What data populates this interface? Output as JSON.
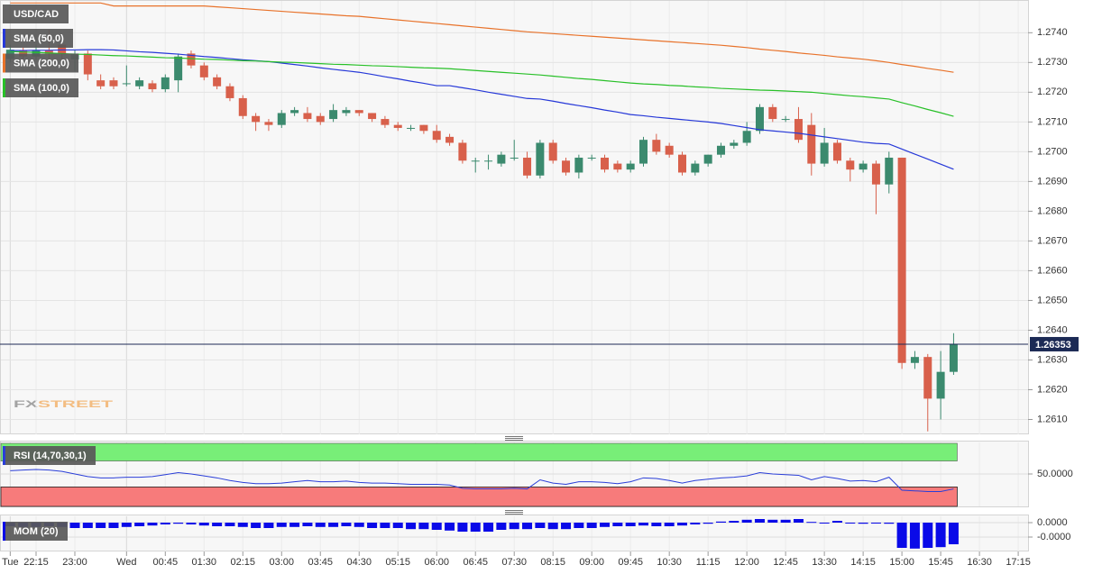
{
  "chart_data": [
    {
      "type": "candlestick",
      "title": "USD/CAD",
      "watermark": [
        "FX",
        "STREET"
      ],
      "categories": [
        "Tue",
        null,
        "22:15",
        null,
        null,
        "23:00",
        null,
        null,
        null,
        "Wed",
        null,
        null,
        "00:45",
        null,
        null,
        "01:30",
        null,
        null,
        "02:15",
        null,
        null,
        "03:00",
        null,
        null,
        "03:45",
        null,
        null,
        "04:30",
        null,
        null,
        "05:15",
        null,
        null,
        "06:00",
        null,
        null,
        "06:45",
        null,
        null,
        "07:30",
        null,
        null,
        "08:15",
        null,
        null,
        "09:00",
        null,
        null,
        "09:45",
        null,
        null,
        "10:30",
        null,
        null,
        "11:15",
        null,
        null,
        "12:00",
        null,
        null,
        "12:45",
        null,
        null,
        "13:30",
        null,
        null,
        "14:15",
        null,
        null,
        "15:00",
        null,
        null,
        "15:45",
        null,
        null,
        "16:30",
        null,
        null,
        "17:15"
      ],
      "open": [
        1.27312,
        1.2734,
        1.2732,
        1.2734,
        1.2736,
        1.2731,
        1.2733,
        1.2724,
        1.2724,
        1.2723,
        1.2722,
        1.2723,
        1.2721,
        1.2724,
        1.2733,
        1.2729,
        1.2725,
        1.2722,
        1.2718,
        1.2712,
        1.271,
        1.2709,
        1.2713,
        1.2713,
        1.2712,
        1.2711,
        1.2713,
        1.2714,
        1.2713,
        1.2711,
        1.2709,
        1.2708,
        1.2709,
        1.2707,
        1.2705,
        1.2703,
        1.2697,
        1.2697,
        1.2696,
        1.2698,
        1.2698,
        1.2692,
        1.2703,
        1.2697,
        1.2693,
        1.2698,
        1.2698,
        1.2696,
        1.2694,
        1.2696,
        1.2704,
        1.2702,
        1.2699,
        1.2693,
        1.2696,
        1.2699,
        1.2702,
        1.2703,
        1.2707,
        1.2715,
        1.2711,
        1.2711,
        1.2709,
        1.2696,
        1.2703,
        1.2697,
        1.2694,
        1.2696,
        1.2689,
        1.2698,
        1.2629,
        1.2631,
        1.2617,
        1.2626,
        null,
        null,
        null,
        null,
        null
      ],
      "high": [
        1.2736,
        1.2735,
        1.2736,
        1.2741,
        1.2737,
        1.2734,
        1.2734,
        1.2726,
        1.2725,
        1.2729,
        1.2725,
        1.2724,
        1.2726,
        1.2733,
        1.2734,
        1.273,
        1.2726,
        1.2723,
        1.2719,
        1.2713,
        1.2711,
        1.2714,
        1.2715,
        1.2715,
        1.2713,
        1.2716,
        1.2715,
        1.2714,
        1.2713,
        1.2712,
        1.271,
        1.2709,
        1.2709,
        1.2709,
        1.2706,
        1.2704,
        1.2698,
        1.2699,
        1.27,
        1.2704,
        1.27,
        1.2704,
        1.2704,
        1.2698,
        1.2699,
        1.2699,
        1.2699,
        1.2697,
        1.2697,
        1.2705,
        1.2706,
        1.2703,
        1.27,
        1.2697,
        1.2699,
        1.2703,
        1.2704,
        1.271,
        1.2716,
        1.2716,
        1.2712,
        1.2715,
        1.2713,
        1.2708,
        1.2704,
        1.2698,
        1.2697,
        1.2697,
        1.27,
        1.2698,
        1.2633,
        1.2632,
        1.2633,
        1.2639,
        null,
        null,
        null,
        null,
        null
      ],
      "low": [
        1.273,
        1.2731,
        1.2731,
        1.2731,
        1.273,
        1.2727,
        1.2724,
        1.2721,
        1.2721,
        1.2722,
        1.2721,
        1.272,
        1.272,
        1.272,
        1.2728,
        1.2724,
        1.2721,
        1.2717,
        1.2711,
        1.2707,
        1.2707,
        1.2708,
        1.2712,
        1.271,
        1.2709,
        1.271,
        1.2712,
        1.2712,
        1.271,
        1.2708,
        1.2707,
        1.2707,
        1.2706,
        1.2703,
        1.2702,
        1.2696,
        1.2693,
        1.2694,
        1.2695,
        1.2697,
        1.2691,
        1.2691,
        1.2696,
        1.2692,
        1.2691,
        1.2697,
        1.2693,
        1.2693,
        1.2693,
        1.2695,
        1.2699,
        1.2698,
        1.2692,
        1.2692,
        1.2695,
        1.2698,
        1.2701,
        1.2702,
        1.2706,
        1.271,
        1.271,
        1.2703,
        1.2692,
        1.2695,
        1.2696,
        1.269,
        1.2693,
        1.2679,
        1.2686,
        1.2627,
        1.2627,
        1.2606,
        1.261,
        1.2625,
        null,
        null,
        null,
        null,
        null
      ],
      "close": [
        1.27343,
        1.2732,
        1.2734,
        1.2733,
        1.2733,
        1.2733,
        1.2726,
        1.2722,
        1.2722,
        1.2723,
        1.2724,
        1.2721,
        1.2725,
        1.2732,
        1.2729,
        1.2725,
        1.2722,
        1.2718,
        1.2712,
        1.271,
        1.2709,
        1.2713,
        1.2714,
        1.2711,
        1.271,
        1.2714,
        1.2714,
        1.2713,
        1.2711,
        1.2709,
        1.2708,
        1.2708,
        1.2707,
        1.2704,
        1.2703,
        1.2697,
        1.2697,
        1.2697,
        1.2699,
        1.2698,
        1.2692,
        1.2703,
        1.2697,
        1.2693,
        1.2698,
        1.2698,
        1.2694,
        1.2694,
        1.2696,
        1.2704,
        1.27,
        1.2699,
        1.2693,
        1.2696,
        1.2699,
        1.2702,
        1.2703,
        1.2707,
        1.2715,
        1.2711,
        1.2711,
        1.2704,
        1.2696,
        1.2703,
        1.2697,
        1.2694,
        1.2696,
        1.2689,
        1.2698,
        1.2629,
        1.2631,
        1.2617,
        1.2626,
        1.26353,
        null,
        null,
        null,
        null,
        null
      ],
      "up_color": "#3b8a6e",
      "down_color": "#d8604b",
      "series": [
        {
          "name": "SMA (50,0)",
          "color": "#2638d8",
          "values": [
            1.2734,
            1.2734,
            1.27341,
            1.27341,
            1.27342,
            1.27342,
            1.27343,
            1.27343,
            1.27342,
            1.27339,
            1.27336,
            1.27334,
            1.27331,
            1.27328,
            1.27324,
            1.2732,
            1.27317,
            1.27313,
            1.27309,
            1.27306,
            1.27303,
            1.27298,
            1.27293,
            1.27288,
            1.27282,
            1.27277,
            1.27272,
            1.27267,
            1.2726,
            1.27252,
            1.27245,
            1.27237,
            1.2723,
            1.27222,
            1.27222,
            1.27215,
            1.27208,
            1.272,
            1.27193,
            1.27186,
            1.27179,
            1.27177,
            1.2717,
            1.27162,
            1.27155,
            1.27148,
            1.2714,
            1.27133,
            1.27125,
            1.27121,
            1.27116,
            1.27112,
            1.27108,
            1.27104,
            1.271,
            1.27095,
            1.27088,
            1.27081,
            1.27074,
            1.2707,
            1.27066,
            1.27062,
            1.27056,
            1.2705,
            1.27044,
            1.27038,
            1.27032,
            1.27028,
            1.27026,
            1.27009,
            1.26992,
            1.26975,
            1.26958,
            1.26941,
            null,
            null,
            null,
            null,
            null
          ]
        },
        {
          "name": "SMA (200,0)",
          "color": "#e8722a",
          "values": [
            1.275,
            1.275,
            1.275,
            1.275,
            1.275,
            1.275,
            1.275,
            1.275,
            1.2749,
            1.2749,
            1.2749,
            1.2749,
            1.2749,
            1.2749,
            1.2749,
            1.2749,
            1.27487,
            1.27484,
            1.27481,
            1.27478,
            1.27475,
            1.27472,
            1.27469,
            1.27466,
            1.27463,
            1.2746,
            1.27457,
            1.27455,
            1.27451,
            1.27447,
            1.27443,
            1.27439,
            1.27435,
            1.27431,
            1.27427,
            1.27423,
            1.27419,
            1.27415,
            1.27411,
            1.27407,
            1.27403,
            1.274,
            1.27397,
            1.27394,
            1.27391,
            1.27388,
            1.27385,
            1.27382,
            1.27379,
            1.27376,
            1.27373,
            1.2737,
            1.27367,
            1.27364,
            1.27361,
            1.27358,
            1.27354,
            1.2735,
            1.27345,
            1.27341,
            1.27337,
            1.27332,
            1.27328,
            1.27324,
            1.27319,
            1.27315,
            1.27311,
            1.27306,
            1.273,
            1.27293,
            1.27287,
            1.2728,
            1.27274,
            1.27267,
            null,
            null,
            null,
            null,
            null
          ]
        },
        {
          "name": "SMA (100,0)",
          "color": "#28c028",
          "values": [
            1.27337,
            1.27335,
            1.27334,
            1.27332,
            1.2733,
            1.27328,
            1.27327,
            1.27325,
            1.27323,
            1.27322,
            1.2732,
            1.27318,
            1.27316,
            1.27315,
            1.27313,
            1.27311,
            1.2731,
            1.27308,
            1.27306,
            1.27305,
            1.27303,
            1.27301,
            1.273,
            1.27298,
            1.27296,
            1.27294,
            1.27293,
            1.27291,
            1.27289,
            1.27288,
            1.27286,
            1.27284,
            1.27282,
            1.27281,
            1.27279,
            1.27276,
            1.27273,
            1.2727,
            1.27267,
            1.27264,
            1.27261,
            1.27258,
            1.27254,
            1.2725,
            1.27246,
            1.27243,
            1.27239,
            1.27235,
            1.27231,
            1.27228,
            1.27226,
            1.27223,
            1.27221,
            1.27218,
            1.27216,
            1.27213,
            1.27211,
            1.27209,
            1.27207,
            1.27206,
            1.27204,
            1.27202,
            1.272,
            1.27196,
            1.27192,
            1.27188,
            1.27185,
            1.27181,
            1.27177,
            1.27165,
            1.27154,
            1.27142,
            1.27131,
            1.27119,
            null,
            null,
            null,
            null,
            null
          ]
        }
      ],
      "last_price": 1.26353,
      "last_price_color": "#1c2a55",
      "ylim": [
        1.2605,
        1.2751
      ],
      "yticks": [
        {
          "value": 1.261,
          "label": "1.2610"
        },
        {
          "value": 1.262,
          "label": "1.2620"
        },
        {
          "value": 1.263,
          "label": "1.2630"
        },
        {
          "value": 1.264,
          "label": "1.2640"
        },
        {
          "value": 1.265,
          "label": "1.2650"
        },
        {
          "value": 1.266,
          "label": "1.2660"
        },
        {
          "value": 1.267,
          "label": "1.2670"
        },
        {
          "value": 1.268,
          "label": "1.2680"
        },
        {
          "value": 1.269,
          "label": "1.2690"
        },
        {
          "value": 1.27,
          "label": "1.2700"
        },
        {
          "value": 1.271,
          "label": "1.2710"
        },
        {
          "value": 1.272,
          "label": "1.2720"
        },
        {
          "value": 1.273,
          "label": "1.2730"
        },
        {
          "value": 1.274,
          "label": "1.2740"
        }
      ],
      "grid": true
    },
    {
      "type": "line",
      "title": "RSI (14,70,30,1)",
      "color": "#2a3ed8",
      "upper": 70,
      "lower": 30,
      "upper_color": "#78ee78",
      "lower_color": "#f77b7b",
      "values": [
        55,
        56,
        57,
        56,
        54,
        50,
        46,
        44,
        44,
        45,
        45,
        46,
        49,
        52,
        50,
        47,
        44,
        40,
        37,
        35,
        35,
        36,
        38,
        40,
        38,
        38,
        39,
        37,
        36,
        36,
        35,
        34,
        34,
        34,
        33,
        28,
        27,
        27,
        27,
        28,
        27,
        41,
        36,
        34,
        38,
        38,
        37,
        35,
        38,
        44,
        43,
        40,
        36,
        40,
        42,
        44,
        45,
        47,
        52,
        50,
        49,
        48,
        41,
        46,
        43,
        39,
        40,
        38,
        45,
        25,
        24,
        23,
        23,
        27,
        null,
        null,
        null,
        null,
        null
      ],
      "ylim": [
        0,
        100
      ],
      "yticks": [
        {
          "value": 50,
          "label": "50.0000"
        }
      ]
    },
    {
      "type": "bar",
      "title": "MOM (20)",
      "color": "#0a0ae8",
      "values": [
        -1e-05,
        -1.2e-05,
        -1.2e-05,
        -1e-05,
        -1.2e-05,
        -1.5e-05,
        -1.5e-05,
        -1.5e-05,
        -1.5e-05,
        -1.2e-05,
        -1e-05,
        -8e-06,
        -5e-06,
        -3e-06,
        -5e-06,
        -8e-06,
        -1e-05,
        -1e-05,
        -1.2e-05,
        -1.5e-05,
        -1.5e-05,
        -1.2e-05,
        -1.2e-05,
        -1e-05,
        -1.2e-05,
        -1.2e-05,
        -1e-05,
        -1.2e-05,
        -1.5e-05,
        -1.5e-05,
        -1.5e-05,
        -1.8e-05,
        -1.8e-05,
        -2e-05,
        -2.2e-05,
        -2.5e-05,
        -2.5e-05,
        -2.5e-05,
        -2e-05,
        -1.8e-05,
        -1.8e-05,
        -1.5e-05,
        -1.8e-05,
        -1.8e-05,
        -1.5e-05,
        -1.5e-05,
        -1.2e-05,
        -1e-05,
        -1e-05,
        -8e-06,
        -1e-05,
        -1e-05,
        -8e-06,
        -5e-06,
        -3e-06,
        3e-06,
        5e-06,
        8e-06,
        1e-05,
        8e-06,
        8e-06,
        1e-05,
        2e-06,
        -2e-06,
        5e-06,
        -2e-06,
        -3e-06,
        -2e-06,
        -3e-06,
        -7e-05,
        -7.2e-05,
        -7e-05,
        -6.8e-05,
        -6e-05,
        null,
        null,
        null,
        null,
        null
      ],
      "ylim": [
        -8e-05,
        2e-05
      ],
      "yticks": [
        {
          "value": 0,
          "label": "0.0000"
        },
        {
          "value": -4e-05,
          "label": "-0.0000"
        }
      ]
    }
  ]
}
